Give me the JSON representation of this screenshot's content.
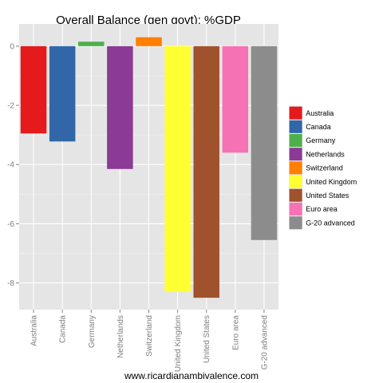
{
  "chart_data": {
    "type": "bar",
    "title": "Overall Balance (gen govt): %GDP",
    "footer": "www.ricardianambivalence.com",
    "xlabel": "",
    "ylabel": "",
    "ylim": [
      -8.9,
      0.75
    ],
    "yticks": [
      0,
      -2,
      -4,
      -6,
      -8
    ],
    "ytick_labels": [
      "0",
      "-2",
      "-4",
      "-6",
      "-8"
    ],
    "grid": true,
    "legend_position": "right",
    "categories": [
      "Australia",
      "Canada",
      "Germany",
      "Netherlands",
      "Switzerland",
      "United Kingdom",
      "United States",
      "Euro area",
      "G-20 advanced"
    ],
    "values": [
      -2.95,
      -3.22,
      0.15,
      -4.15,
      0.3,
      -8.3,
      -8.5,
      -3.6,
      -6.55
    ],
    "colors": [
      "#E41A1C",
      "#3167A8",
      "#4DAF4A",
      "#8B3A96",
      "#FF7F00",
      "#FFFF33",
      "#A0522D",
      "#F572B5",
      "#8C8C8C"
    ]
  }
}
